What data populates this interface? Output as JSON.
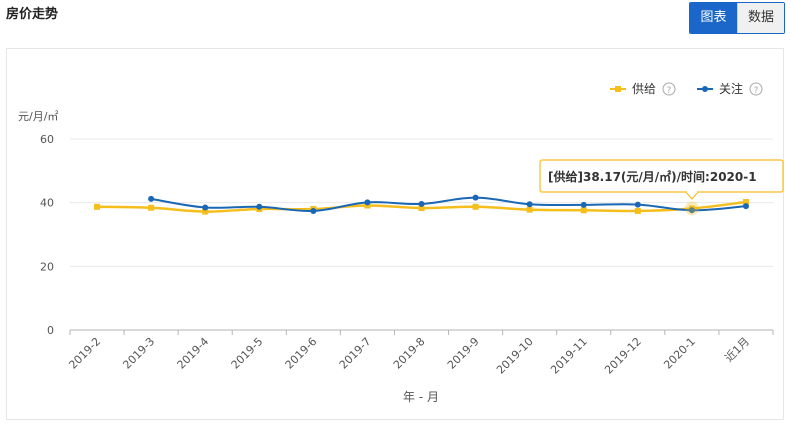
{
  "header": {
    "title": "房价走势",
    "chart_tab": "图表",
    "data_tab": "数据"
  },
  "legend": {
    "help_symbol": "?"
  },
  "tooltip": {
    "text": "[供给]38.17(元/月/㎡)/时间:2020-1"
  },
  "colors": {
    "supply": "#f5be1d",
    "attention": "#1a67b5",
    "active_tab": "#1a67c9",
    "grid": "#e8e8e8",
    "tooltip_border": "#f5be1d"
  },
  "chart_data": {
    "type": "line",
    "title": "",
    "ylabel": "元/月/㎡",
    "xlabel": "年 - 月",
    "ylim": [
      0,
      60
    ],
    "yticks": [
      0,
      20,
      40,
      60
    ],
    "categories": [
      "2019-2",
      "2019-3",
      "2019-4",
      "2019-5",
      "2019-6",
      "2019-7",
      "2019-8",
      "2019-9",
      "2019-10",
      "2019-11",
      "2019-12",
      "2020-1",
      "近1月"
    ],
    "series": [
      {
        "name": "供给",
        "values": [
          38.7,
          38.4,
          37.2,
          38.0,
          38.0,
          39.1,
          38.3,
          38.7,
          37.8,
          37.6,
          37.4,
          38.17,
          40.2
        ]
      },
      {
        "name": "关注",
        "values": [
          null,
          41.2,
          38.5,
          38.7,
          37.4,
          40.1,
          39.6,
          41.6,
          39.5,
          39.3,
          39.4,
          37.6,
          38.9
        ]
      }
    ],
    "grid": true,
    "legend_position": "top-right",
    "highlight_index": 11
  }
}
